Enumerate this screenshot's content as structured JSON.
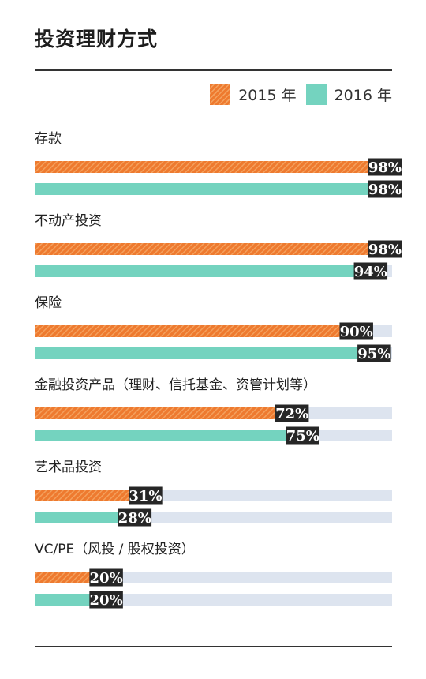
{
  "chart_data": {
    "type": "bar",
    "title": "投资理财方式",
    "categories": [
      "存款",
      "不动产投资",
      "保险",
      "金融投资产品（理财、信托基金、资管计划等）",
      "艺术品投资",
      "VC/PE（风投 / 股权投资）"
    ],
    "series": [
      {
        "name": "2015 年",
        "values": [
          98,
          98,
          90,
          72,
          31,
          20
        ]
      },
      {
        "name": "2016 年",
        "values": [
          98,
          94,
          95,
          75,
          28,
          20
        ]
      }
    ],
    "value_suffix": "%",
    "xlim": [
      0,
      100
    ],
    "legend": "top-right",
    "colors": {
      "s2015": "#ee7a2f",
      "s2015_hatch": "#f4a25f",
      "s2016": "#74d3bf",
      "track": "#dde4ef",
      "label_bg": "#262626"
    }
  }
}
